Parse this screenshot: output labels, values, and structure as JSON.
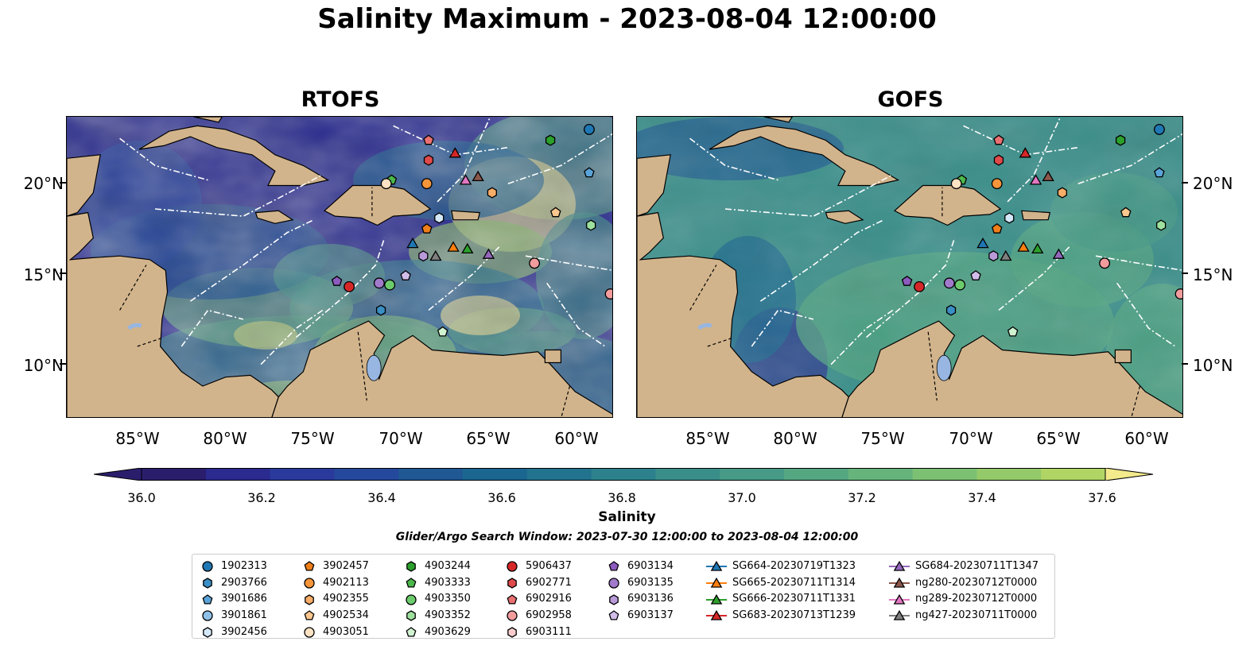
{
  "suptitle": "Salinity Maximum - 2023-08-04 12:00:00",
  "panels": [
    {
      "title": "RTOFS",
      "id": "rtofs"
    },
    {
      "title": "GOFS",
      "id": "gofs"
    }
  ],
  "lat_labels": [
    "20°N",
    "15°N",
    "10°N"
  ],
  "lon_labels": [
    "85°W",
    "80°W",
    "75°W",
    "70°W",
    "65°W",
    "60°W"
  ],
  "colorbar": {
    "label": "Salinity",
    "ticks": [
      "36.0",
      "36.2",
      "36.4",
      "36.6",
      "36.8",
      "37.0",
      "37.2",
      "37.4",
      "37.6"
    ],
    "colors": [
      "#2a1e6c",
      "#2b2a8f",
      "#2a3a9c",
      "#24499c",
      "#1f5893",
      "#1b6690",
      "#22738e",
      "#2d818c",
      "#3a8e8a",
      "#479a86",
      "#55a782",
      "#66b47c",
      "#7bc073",
      "#94ca69",
      "#b0d565",
      "#cee178",
      "#f3ea8c"
    ],
    "min": 36.0,
    "max": 37.7
  },
  "search_window": "Glider/Argo Search Window: 2023-07-30 12:00:00 to 2023-08-04 12:00:00",
  "legend": {
    "columns": [
      [
        {
          "label": "1902313",
          "marker": "circle",
          "color": "#1f77b4"
        },
        {
          "label": "2903766",
          "marker": "hexagon",
          "color": "#3a8ec4"
        },
        {
          "label": "3901686",
          "marker": "pentagon",
          "color": "#5aa3d8"
        },
        {
          "label": "3901861",
          "marker": "circle",
          "color": "#8fc1e8"
        },
        {
          "label": "3902456",
          "marker": "hexagon",
          "color": "#d4e8f7"
        }
      ],
      [
        {
          "label": "3902457",
          "marker": "pentagon",
          "color": "#ef7f1a"
        },
        {
          "label": "4902113",
          "marker": "circle",
          "color": "#f6953a"
        },
        {
          "label": "4902355",
          "marker": "hexagon",
          "color": "#f8ad68"
        },
        {
          "label": "4902534",
          "marker": "pentagon",
          "color": "#fbc88f"
        },
        {
          "label": "4903051",
          "marker": "circle",
          "color": "#fde3c4"
        }
      ],
      [
        {
          "label": "4903244",
          "marker": "hexagon",
          "color": "#2ca02c"
        },
        {
          "label": "4903333",
          "marker": "pentagon",
          "color": "#4cb84c"
        },
        {
          "label": "4903350",
          "marker": "circle",
          "color": "#6ccc6c"
        },
        {
          "label": "4903352",
          "marker": "hexagon",
          "color": "#9ee19e"
        },
        {
          "label": "4903629",
          "marker": "pentagon",
          "color": "#d0f2d0"
        }
      ],
      [
        {
          "label": "5906437",
          "marker": "circle",
          "color": "#d62728"
        },
        {
          "label": "6902771",
          "marker": "hexagon",
          "color": "#e04a4b"
        },
        {
          "label": "6902916",
          "marker": "pentagon",
          "color": "#ea7072"
        },
        {
          "label": "6902958",
          "marker": "circle",
          "color": "#f29c9d"
        },
        {
          "label": "6903111",
          "marker": "hexagon",
          "color": "#f8cccd"
        }
      ],
      [
        {
          "label": "6903134",
          "marker": "pentagon",
          "color": "#8c5bbd"
        },
        {
          "label": "6903135",
          "marker": "circle",
          "color": "#a27acb"
        },
        {
          "label": "6903136",
          "marker": "hexagon",
          "color": "#b99ad9"
        },
        {
          "label": "6903137",
          "marker": "pentagon",
          "color": "#d2bdea"
        }
      ],
      [
        {
          "label": "SG664-20230719T1323",
          "marker": "triangle",
          "color": "#1f77b4",
          "line": true
        },
        {
          "label": "SG665-20230711T1314",
          "marker": "triangle",
          "color": "#ff7f0e",
          "line": true
        },
        {
          "label": "SG666-20230711T1331",
          "marker": "triangle",
          "color": "#2ca02c",
          "line": true
        },
        {
          "label": "SG683-20230713T1239",
          "marker": "triangle",
          "color": "#d62728",
          "line": true
        }
      ],
      [
        {
          "label": "SG684-20230711T1347",
          "marker": "triangle",
          "color": "#9467bd",
          "line": true
        },
        {
          "label": "ng280-20230712T0000",
          "marker": "triangle",
          "color": "#8c564b",
          "line": true
        },
        {
          "label": "ng289-20230712T0000",
          "marker": "triangle",
          "color": "#e377c2",
          "line": true
        },
        {
          "label": "ng427-20230711T0000",
          "marker": "triangle",
          "color": "#7f7f7f",
          "line": true
        }
      ]
    ]
  },
  "markers_on_map": [
    {
      "lon": -59.4,
      "lat": 23.0,
      "marker": "circle",
      "color": "#1f77b4"
    },
    {
      "lon": -61.6,
      "lat": 22.4,
      "marker": "hexagon",
      "color": "#2ca02c"
    },
    {
      "lon": -68.5,
      "lat": 22.4,
      "marker": "pentagon",
      "color": "#ea7072"
    },
    {
      "lon": -67.0,
      "lat": 21.7,
      "marker": "triangle",
      "color": "#d62728"
    },
    {
      "lon": -68.5,
      "lat": 21.3,
      "marker": "hexagon",
      "color": "#e04a4b"
    },
    {
      "lon": -59.4,
      "lat": 20.6,
      "marker": "pentagon",
      "color": "#5aa3d8"
    },
    {
      "lon": -65.7,
      "lat": 20.4,
      "marker": "triangle",
      "color": "#8c564b"
    },
    {
      "lon": -66.4,
      "lat": 20.2,
      "marker": "triangle",
      "color": "#e377c2"
    },
    {
      "lon": -70.6,
      "lat": 20.2,
      "marker": "pentagon",
      "color": "#4cb84c"
    },
    {
      "lon": -70.9,
      "lat": 20.0,
      "marker": "circle",
      "color": "#fde3c4"
    },
    {
      "lon": -68.6,
      "lat": 20.0,
      "marker": "circle",
      "color": "#f6953a"
    },
    {
      "lon": -64.9,
      "lat": 19.5,
      "marker": "hexagon",
      "color": "#f8ad68"
    },
    {
      "lon": -61.3,
      "lat": 18.4,
      "marker": "pentagon",
      "color": "#fbc88f"
    },
    {
      "lon": -67.9,
      "lat": 18.1,
      "marker": "hexagon",
      "color": "#d4e8f7"
    },
    {
      "lon": -59.3,
      "lat": 17.7,
      "marker": "hexagon",
      "color": "#9ee19e"
    },
    {
      "lon": -68.6,
      "lat": 17.5,
      "marker": "pentagon",
      "color": "#ef7f1a"
    },
    {
      "lon": -69.4,
      "lat": 16.7,
      "marker": "triangle",
      "color": "#1f77b4"
    },
    {
      "lon": -67.1,
      "lat": 16.5,
      "marker": "triangle",
      "color": "#ff7f0e"
    },
    {
      "lon": -66.3,
      "lat": 16.4,
      "marker": "triangle",
      "color": "#2ca02c"
    },
    {
      "lon": -65.1,
      "lat": 16.1,
      "marker": "triangle",
      "color": "#9467bd"
    },
    {
      "lon": -68.8,
      "lat": 16.0,
      "marker": "hexagon",
      "color": "#b99ad9"
    },
    {
      "lon": -68.1,
      "lat": 16.0,
      "marker": "triangle",
      "color": "#7f7f7f"
    },
    {
      "lon": -62.5,
      "lat": 15.6,
      "marker": "circle",
      "color": "#f29c9d"
    },
    {
      "lon": -69.8,
      "lat": 14.9,
      "marker": "pentagon",
      "color": "#d2bdea"
    },
    {
      "lon": -73.7,
      "lat": 14.6,
      "marker": "pentagon",
      "color": "#8c5bbd"
    },
    {
      "lon": -71.3,
      "lat": 14.5,
      "marker": "circle",
      "color": "#a27acb"
    },
    {
      "lon": -70.7,
      "lat": 14.4,
      "marker": "circle",
      "color": "#6ccc6c"
    },
    {
      "lon": -73.0,
      "lat": 14.3,
      "marker": "circle",
      "color": "#d62728"
    },
    {
      "lon": -58.2,
      "lat": 13.9,
      "marker": "circle",
      "color": "#f29c9d"
    },
    {
      "lon": -71.2,
      "lat": 13.0,
      "marker": "hexagon",
      "color": "#3a8ec4"
    },
    {
      "lon": -67.7,
      "lat": 11.8,
      "marker": "pentagon",
      "color": "#d0f2d0"
    }
  ]
}
